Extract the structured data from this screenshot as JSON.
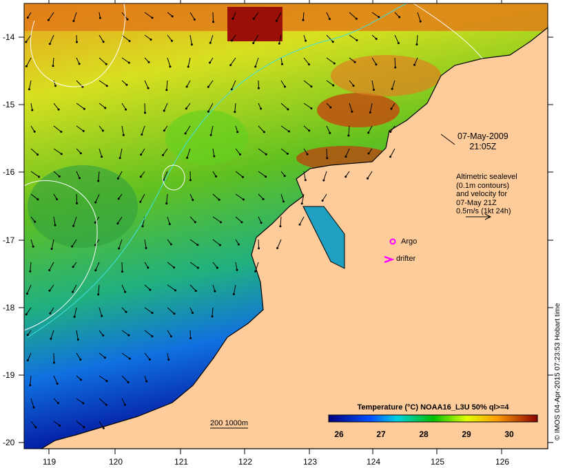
{
  "map": {
    "date": "07-May-2009",
    "time": "21:05Z",
    "legend_lines": [
      "Altimetric sealevel",
      "(0.1m contours)",
      "and velocity for",
      "07-May 21Z",
      "0.5m/s (1kt 24h)"
    ],
    "argo_label": "Argo",
    "drifter_label": "drifter",
    "scale_label": "200  1000m",
    "copyright": "© IMOS 04-Apr-2015 07:23:53 Hobart time",
    "lon_ticks": [
      "119",
      "120",
      "121",
      "122",
      "123",
      "124",
      "125",
      "126"
    ],
    "lat_ticks": [
      "-14",
      "-15",
      "-16",
      "-17",
      "-18",
      "-19",
      "-20"
    ],
    "colorbar": {
      "title": "Temperature (°C) NOAA16_L3U 50% ql>=4",
      "ticks": [
        "26",
        "27",
        "28",
        "29",
        "30"
      ],
      "colors": [
        "#00007f",
        "#0050ff",
        "#00d0e0",
        "#00c000",
        "#e0ff00",
        "#ffa000",
        "#8b0000"
      ]
    },
    "land_color": "#fecb9b",
    "marker_color": "#ff00ff"
  }
}
